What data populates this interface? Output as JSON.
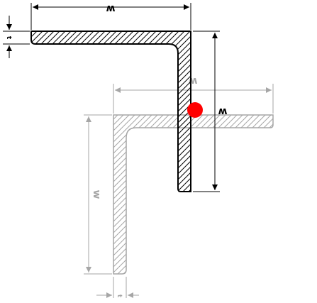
{
  "diagram": {
    "front_angle": {
      "width_label": "w",
      "height_label": "w",
      "thickness_label": "t",
      "stroke_color": "#000000"
    },
    "back_angle": {
      "width_label": "w",
      "height_label": "w",
      "thickness_label": "t",
      "stroke_color": "#a6a6a6"
    },
    "marker": {
      "color": "#ff0000"
    }
  }
}
